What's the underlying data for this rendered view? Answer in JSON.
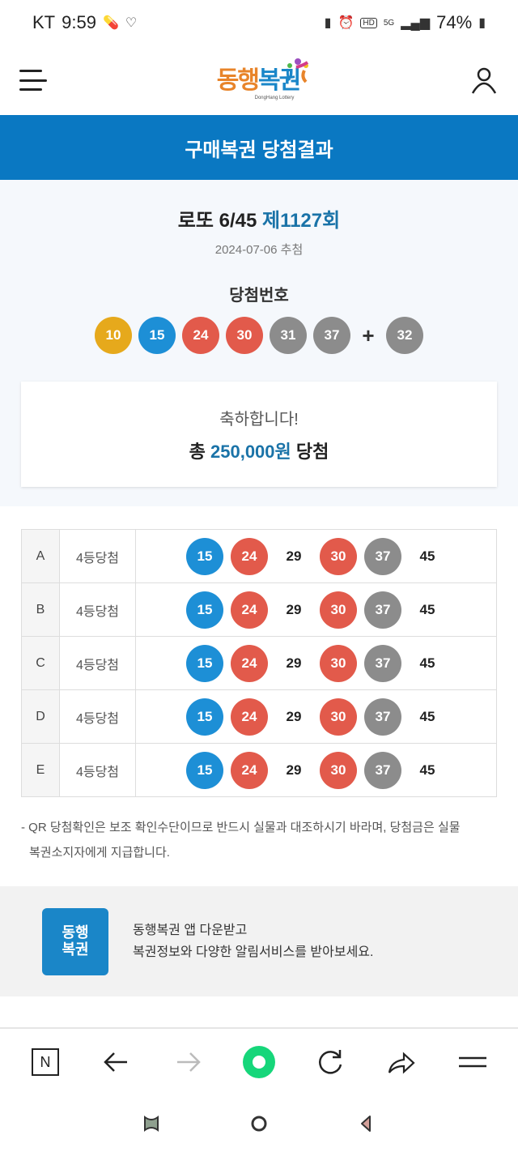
{
  "status_bar": {
    "carrier": "KT",
    "time": "9:59",
    "battery": "74%",
    "icons": [
      "pill-icon",
      "heart-icon",
      "battery-saver-icon",
      "alarm-icon",
      "hd-icon",
      "5g-icon",
      "signal-icon",
      "battery-icon"
    ]
  },
  "header": {
    "logo_text_orange": "동행",
    "logo_text_blue": "복권",
    "logo_sub": "DongHang Lottery",
    "menu_icon": "hamburger-icon",
    "user_icon": "user-icon"
  },
  "title_bar": {
    "title": "구매복권 당첨결과"
  },
  "draw": {
    "game": "로또 6/45",
    "round": "제1127회",
    "date": "2024-07-06 추첨",
    "winning_label": "당첨번호",
    "numbers": [
      10,
      15,
      24,
      30,
      31,
      37
    ],
    "plus": "+",
    "bonus": 32
  },
  "result": {
    "congrats": "축하합니다!",
    "prefix": "총",
    "amount": "250,000원",
    "suffix": "당첨"
  },
  "tickets": [
    {
      "key": "A",
      "rank": "4등당첨",
      "numbers": [
        15,
        24,
        29,
        30,
        37,
        45
      ]
    },
    {
      "key": "B",
      "rank": "4등당첨",
      "numbers": [
        15,
        24,
        29,
        30,
        37,
        45
      ]
    },
    {
      "key": "C",
      "rank": "4등당첨",
      "numbers": [
        15,
        24,
        29,
        30,
        37,
        45
      ]
    },
    {
      "key": "D",
      "rank": "4등당첨",
      "numbers": [
        15,
        24,
        29,
        30,
        37,
        45
      ]
    },
    {
      "key": "E",
      "rank": "4등당첨",
      "numbers": [
        15,
        24,
        29,
        30,
        37,
        45
      ]
    }
  ],
  "notice": {
    "line1": "- QR 당첨확인은 보조 확인수단이므로 반드시 실물과 대조하시기 바라며, 당첨금은 실물",
    "line2": "복권소지자에게 지급합니다."
  },
  "app_banner": {
    "icon_line1": "동행",
    "icon_line2": "복권",
    "line1": "동행복권 앱 다운받고",
    "line2": "복권정보와 다양한 알림서비스를 받아보세요."
  },
  "browser_nav": {
    "items": [
      "naver-n-icon",
      "back-icon",
      "forward-icon",
      "green-dot-home-icon",
      "reload-icon",
      "share-icon",
      "menu-icon"
    ],
    "n_label": "N"
  },
  "colors": {
    "primary": "#0a78c2",
    "accent_text": "#1a73a8",
    "ball_yellow": "#e6a91c",
    "ball_blue": "#1d8fd6",
    "ball_red": "#e25a4b",
    "ball_gray": "#8c8c8c"
  }
}
